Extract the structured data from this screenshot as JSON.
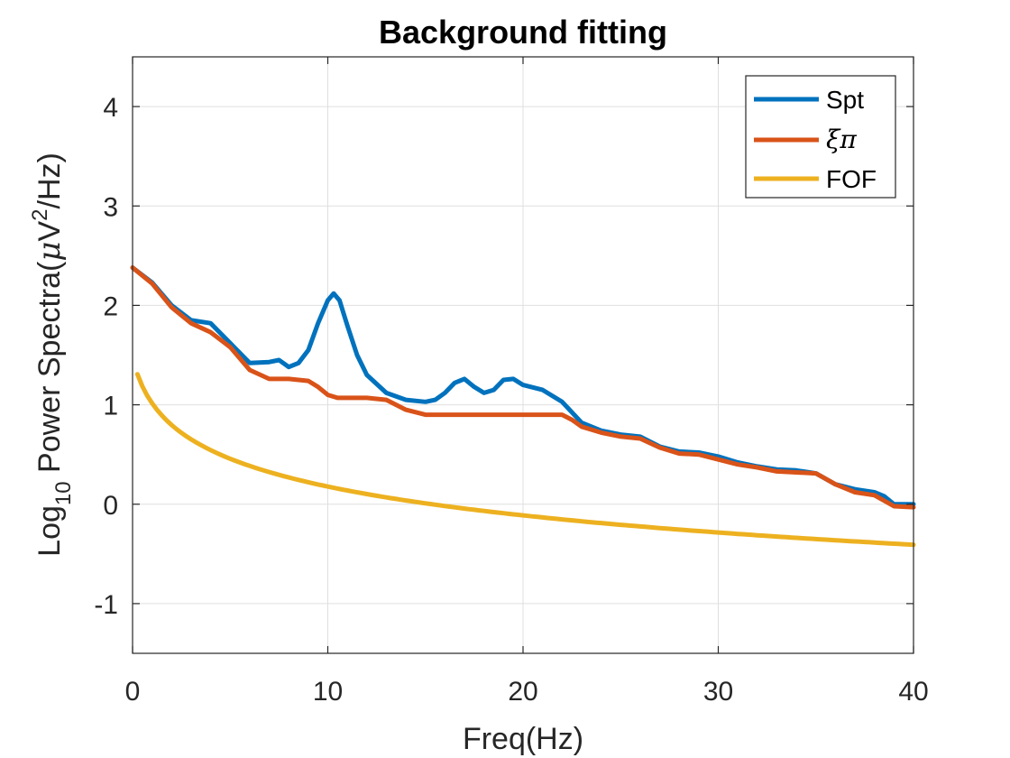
{
  "chart_data": {
    "type": "line",
    "title": "Background fitting",
    "xlabel": "Freq(Hz)",
    "ylabel": {
      "prefix": "Log",
      "sub": "10",
      "main": " Power Spectra(",
      "mu": "μ",
      "unitV": "V",
      "sup": "2",
      "end": "/Hz)"
    },
    "xlim": [
      0,
      40
    ],
    "ylim": [
      -1.5,
      4.5
    ],
    "xticks": [
      0,
      10,
      20,
      30,
      40
    ],
    "xtick_labels": [
      "0",
      "10",
      "20",
      "30",
      "40"
    ],
    "yticks": [
      -1,
      0,
      1,
      2,
      3,
      4
    ],
    "ytick_labels": [
      "-1",
      "0",
      "1",
      "2",
      "3",
      "4"
    ],
    "grid": true,
    "legend_position": "top-right",
    "series": [
      {
        "name": "Spt",
        "color": "#0072BD",
        "x": [
          0,
          1,
          2,
          3,
          4,
          5,
          6,
          7,
          7.5,
          8,
          8.5,
          9,
          9.5,
          10,
          10.3,
          10.6,
          11,
          11.5,
          12,
          13,
          14,
          15,
          15.5,
          16,
          16.5,
          17,
          17.5,
          18,
          18.5,
          19,
          19.5,
          20,
          21,
          22,
          23,
          24,
          25,
          26,
          27,
          28,
          29,
          30,
          31,
          32,
          33,
          34,
          35,
          36,
          37,
          38,
          38.5,
          39,
          39.5,
          40
        ],
        "y": [
          2.38,
          2.23,
          2.0,
          1.85,
          1.82,
          1.62,
          1.42,
          1.43,
          1.45,
          1.38,
          1.42,
          1.55,
          1.82,
          2.05,
          2.12,
          2.05,
          1.8,
          1.5,
          1.3,
          1.12,
          1.05,
          1.03,
          1.05,
          1.12,
          1.22,
          1.26,
          1.18,
          1.12,
          1.15,
          1.25,
          1.26,
          1.2,
          1.15,
          1.03,
          0.82,
          0.74,
          0.7,
          0.68,
          0.58,
          0.53,
          0.52,
          0.48,
          0.42,
          0.38,
          0.35,
          0.34,
          0.31,
          0.2,
          0.15,
          0.12,
          0.08,
          0.0,
          0.0,
          0.0
        ]
      },
      {
        "name": "ξπ",
        "color": "#D95319",
        "x": [
          0,
          1,
          2,
          3,
          4,
          5,
          6,
          7,
          8,
          9,
          9.5,
          10,
          10.5,
          11,
          12,
          13,
          14,
          15,
          16,
          17,
          18,
          19,
          20,
          21,
          22,
          22.5,
          23,
          24,
          25,
          26,
          27,
          28,
          29,
          30,
          31,
          32,
          33,
          34,
          35,
          36,
          37,
          38,
          39,
          40
        ],
        "y": [
          2.38,
          2.22,
          1.98,
          1.82,
          1.73,
          1.58,
          1.35,
          1.26,
          1.26,
          1.24,
          1.18,
          1.1,
          1.07,
          1.07,
          1.07,
          1.05,
          0.95,
          0.9,
          0.9,
          0.9,
          0.9,
          0.9,
          0.9,
          0.9,
          0.9,
          0.85,
          0.78,
          0.72,
          0.68,
          0.66,
          0.57,
          0.51,
          0.5,
          0.45,
          0.4,
          0.37,
          0.33,
          0.32,
          0.31,
          0.2,
          0.12,
          0.09,
          -0.02,
          -0.03
        ]
      },
      {
        "name": "FOF",
        "color": "#EDB120",
        "fof": {
          "a": 1.2,
          "b": 1.0,
          "c": 0.53
        }
      }
    ]
  }
}
